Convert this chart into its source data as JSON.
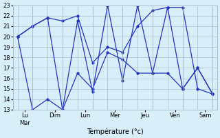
{
  "ylabel": "Température (°c)",
  "ylim": [
    13,
    23
  ],
  "yticks": [
    13,
    14,
    15,
    16,
    17,
    18,
    19,
    20,
    21,
    22,
    23
  ],
  "line_color": "#2233bb",
  "bg_color": "#d8eef8",
  "grid_color": "#aabbcc",
  "line1_x": [
    0,
    1,
    2,
    3,
    4,
    5,
    6,
    7,
    8,
    9,
    10,
    11,
    12,
    13
  ],
  "line1_y": [
    20,
    13,
    14,
    13,
    16.5,
    15.0,
    18.5,
    17.8,
    16.5,
    16.5,
    16.5,
    15.0,
    17.0,
    14.5
  ],
  "line2_x": [
    0,
    1,
    2,
    3,
    4,
    5,
    6,
    7,
    8,
    9,
    10,
    11,
    12,
    13
  ],
  "line2_y": [
    20,
    21,
    21.8,
    13.0,
    21.5,
    14.7,
    23.0,
    15.8,
    23.0,
    16.5,
    22.8,
    15.0,
    17.0,
    14.5
  ],
  "line3_x": [
    0,
    1,
    2,
    3,
    4,
    5,
    6,
    7,
    8,
    9,
    10,
    11,
    12,
    13
  ],
  "line3_y": [
    20,
    21,
    21.8,
    21.5,
    22.0,
    17.5,
    19.0,
    18.5,
    21.0,
    22.5,
    22.8,
    22.8,
    15.0,
    14.5
  ],
  "x_tick_positions": [
    0.5,
    2.5,
    4.5,
    6.5,
    8.5,
    10.5,
    12.5
  ],
  "x_tick_labels": [
    "Lu\nMar",
    "Dim",
    "Lun",
    "Mer",
    "Jeu",
    "Ven",
    "Sam"
  ],
  "x_minor_ticks": [
    0,
    1,
    2,
    3,
    4,
    5,
    6,
    7,
    8,
    9,
    10,
    11,
    12,
    13
  ]
}
